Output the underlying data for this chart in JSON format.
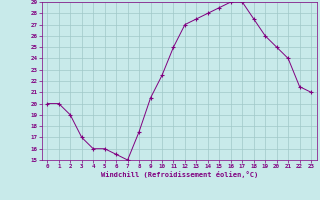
{
  "x": [
    0,
    1,
    2,
    3,
    4,
    5,
    6,
    7,
    8,
    9,
    10,
    11,
    12,
    13,
    14,
    15,
    16,
    17,
    18,
    19,
    20,
    21,
    22,
    23
  ],
  "y": [
    20,
    20,
    19,
    17,
    16,
    16,
    15.5,
    15,
    17.5,
    20.5,
    22.5,
    25,
    27,
    27.5,
    28,
    28.5,
    29,
    29,
    27.5,
    26,
    25,
    24,
    21.5,
    21
  ],
  "line_color": "#800080",
  "marker": "+",
  "marker_color": "#800080",
  "bg_color": "#c8eaea",
  "grid_color": "#a0c8c8",
  "axis_label_color": "#800080",
  "tick_label_color": "#800080",
  "xlabel": "Windchill (Refroidissement éolien,°C)",
  "ylim": [
    15,
    29
  ],
  "xlim": [
    -0.5,
    23.5
  ],
  "yticks": [
    15,
    16,
    17,
    18,
    19,
    20,
    21,
    22,
    23,
    24,
    25,
    26,
    27,
    28,
    29
  ],
  "xticks": [
    0,
    1,
    2,
    3,
    4,
    5,
    6,
    7,
    8,
    9,
    10,
    11,
    12,
    13,
    14,
    15,
    16,
    17,
    18,
    19,
    20,
    21,
    22,
    23
  ],
  "xtick_labels": [
    "0",
    "1",
    "2",
    "3",
    "4",
    "5",
    "6",
    "7",
    "8",
    "9",
    "10",
    "11",
    "12",
    "13",
    "14",
    "15",
    "16",
    "17",
    "18",
    "19",
    "20",
    "21",
    "22",
    "23"
  ]
}
